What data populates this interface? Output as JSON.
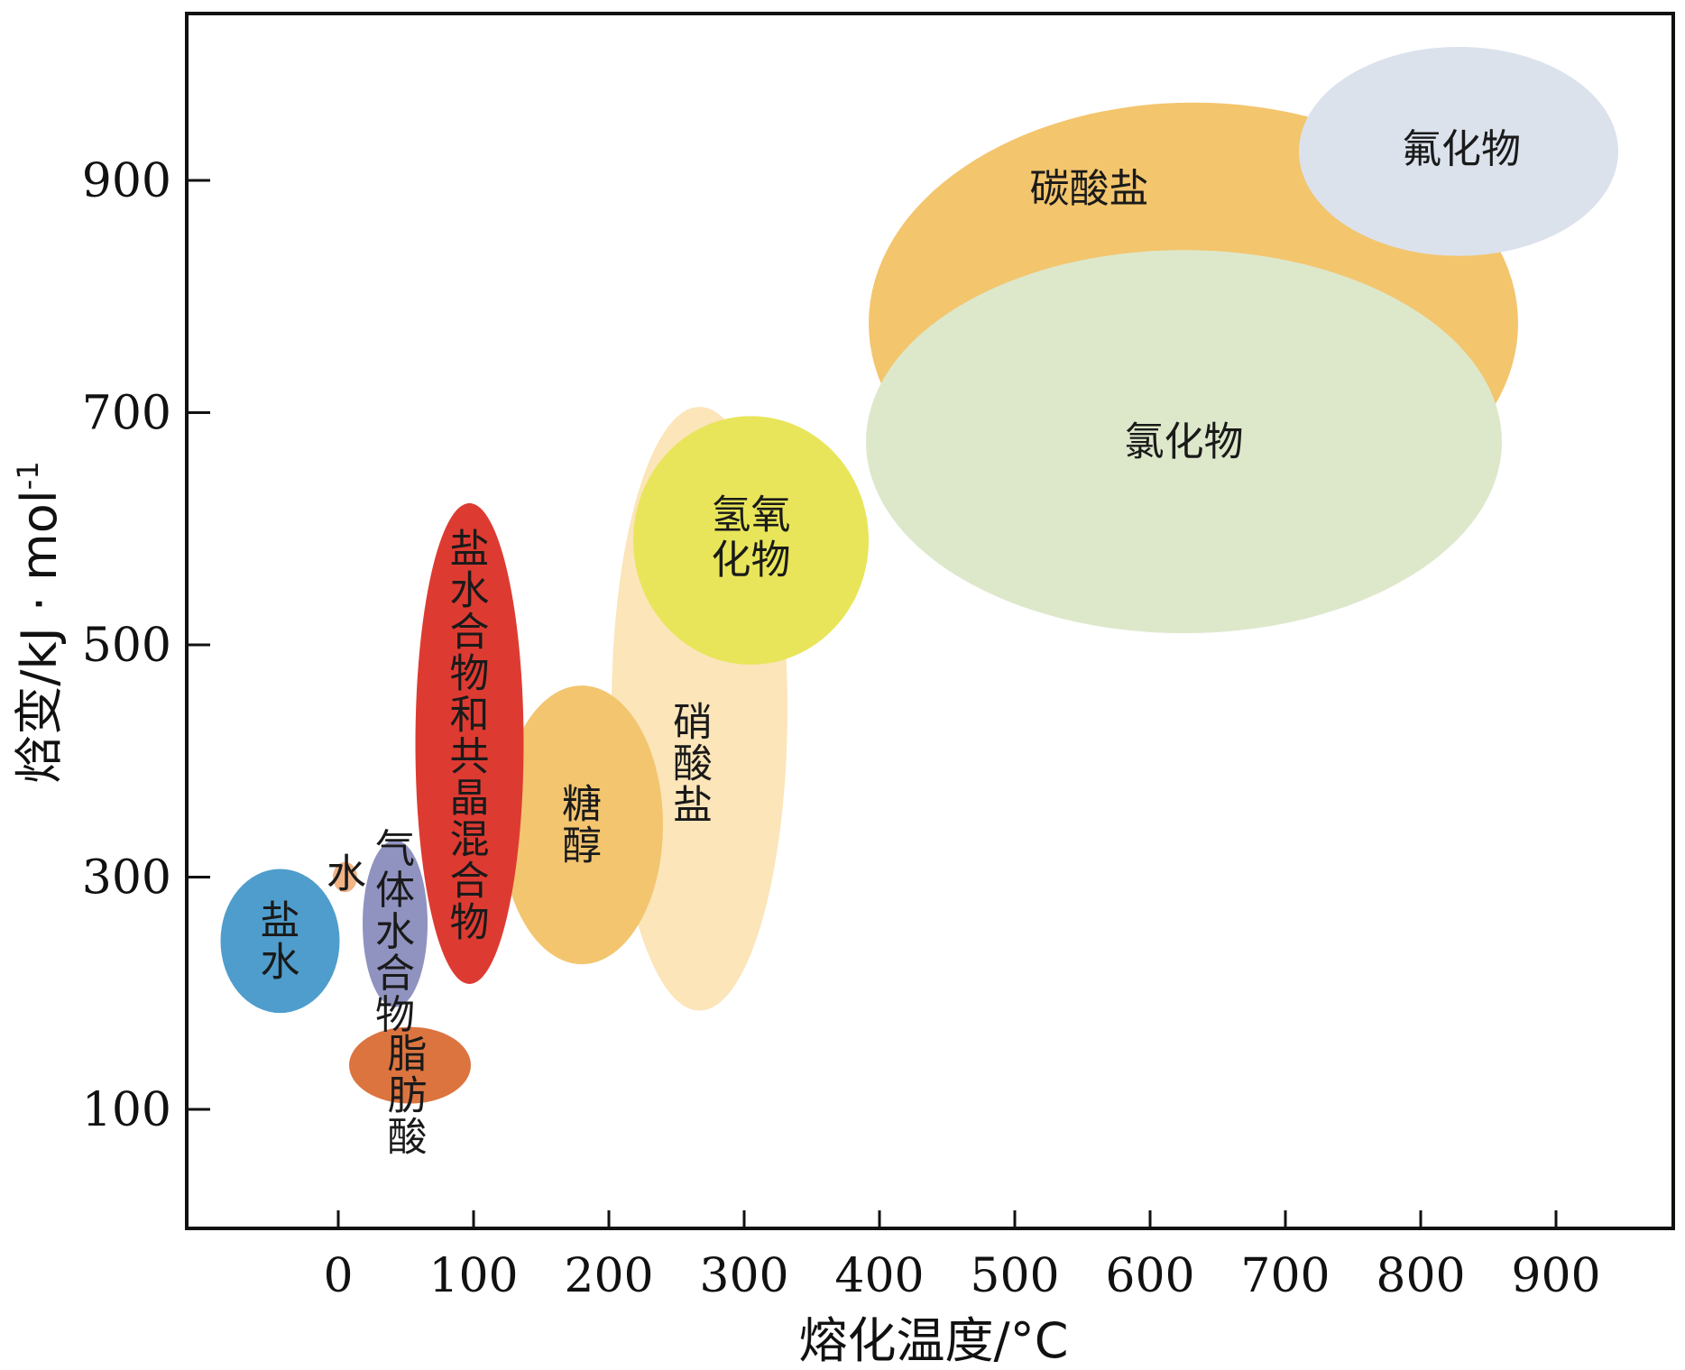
{
  "chart_data": {
    "type": "scatter",
    "subtype": "bubble-regions",
    "title": "",
    "xlabel": "熔化温度/°C",
    "ylabel": "焓变/kJ · mol",
    "ylabel_superscript": "-1",
    "xlim": [
      -110,
      980
    ],
    "ylim": [
      0,
      1050
    ],
    "xticks": [
      0,
      100,
      200,
      300,
      400,
      500,
      600,
      700,
      800,
      900
    ],
    "yticks": [
      100,
      300,
      500,
      700,
      900
    ],
    "grid": false,
    "legend": "none",
    "regions": [
      {
        "name": "碳酸盐",
        "color": "#f3c56d",
        "cx": 632,
        "cy": 777,
        "rx": 240,
        "ry": 190,
        "label_lines": [
          "碳酸盐"
        ],
        "label_x": 555,
        "label_y": 893,
        "vertical": false
      },
      {
        "name": "氟化物",
        "color": "#dbe2ec",
        "cx": 828,
        "cy": 925,
        "rx": 118,
        "ry": 90,
        "label_lines": [
          "氟化物"
        ],
        "label_x": 830,
        "label_y": 927,
        "vertical": false
      },
      {
        "name": "氯化物",
        "color": "#dde8cb",
        "cx": 625,
        "cy": 675,
        "rx": 235,
        "ry": 165,
        "label_lines": [
          "氯化物"
        ],
        "label_x": 625,
        "label_y": 675,
        "vertical": false
      },
      {
        "name": "硝酸盐",
        "color": "#fbe5b9",
        "cx": 267,
        "cy": 445,
        "rx": 65,
        "ry": 260,
        "label_lines": [
          "硝",
          "酸",
          "盐"
        ],
        "label_x": 262,
        "label_y": 398,
        "vertical": true
      },
      {
        "name": "氢氧化物",
        "color": "#e8e55a",
        "cx": 305,
        "cy": 590,
        "rx": 87,
        "ry": 107,
        "label_lines": [
          "氢氧",
          "化物"
        ],
        "label_x": 305,
        "label_y": 593,
        "vertical": false
      },
      {
        "name": "糖醇",
        "color": "#f3c56f",
        "cx": 180,
        "cy": 345,
        "rx": 60,
        "ry": 120,
        "label_lines": [
          "糖",
          "醇"
        ],
        "label_x": 180,
        "label_y": 345,
        "vertical": true
      },
      {
        "name": "盐水合物和共晶混合物",
        "color": "#dd3b32",
        "cx": 97,
        "cy": 415,
        "rx": 40,
        "ry": 207,
        "label_lines": [
          "盐",
          "水",
          "合",
          "物",
          "和",
          "共",
          "晶",
          "混",
          "合",
          "物"
        ],
        "label_x": 97,
        "label_y": 422,
        "vertical": true
      },
      {
        "name": "气体水合物",
        "color": "#9093c0",
        "cx": 42,
        "cy": 260,
        "rx": 24,
        "ry": 72,
        "label_lines": [
          "气",
          "体",
          "水",
          "合",
          "物"
        ],
        "label_x": 42,
        "label_y": 253,
        "vertical": true
      },
      {
        "name": "水",
        "color": "#f0b487",
        "cx": 5,
        "cy": 300,
        "rx": 9,
        "ry": 13,
        "label_lines": [
          "水"
        ],
        "label_x": 6,
        "label_y": 303,
        "vertical": false
      },
      {
        "name": "盐水",
        "color": "#4f9dcc",
        "cx": -43,
        "cy": 245,
        "rx": 44,
        "ry": 62,
        "label_lines": [
          "盐",
          "水"
        ],
        "label_x": -43,
        "label_y": 245,
        "vertical": true
      },
      {
        "name": "脂肪酸",
        "color": "#dc7440",
        "cx": 53,
        "cy": 138,
        "rx": 45,
        "ry": 33,
        "label_lines": [
          "脂",
          "肪",
          "酸"
        ],
        "label_x": 51,
        "label_y": 112,
        "vertical": true
      }
    ]
  }
}
